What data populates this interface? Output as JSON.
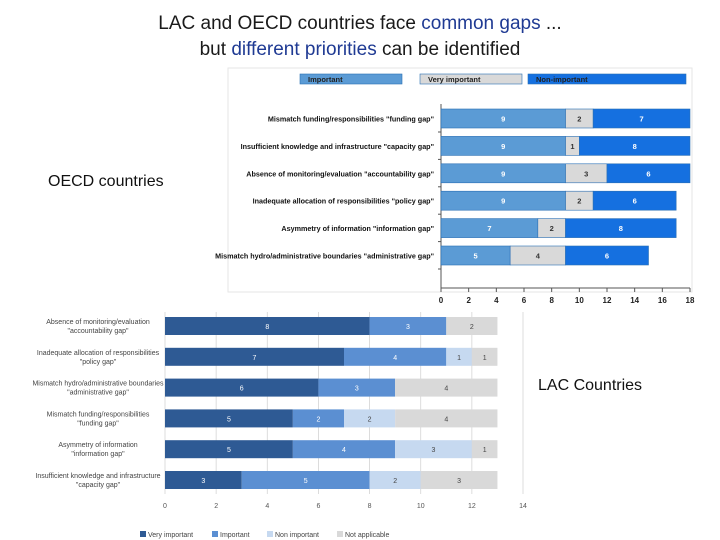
{
  "title": {
    "part1": "LAC and OECD countries face ",
    "highlight1": "common gaps",
    "part2": " ...",
    "part3": "but ",
    "highlight2": "different priorities",
    "part4": " can be identified"
  },
  "labels": {
    "oecd": "OECD countries",
    "lac": "LAC Countries"
  },
  "colors": {
    "title_highlight": "#1f3a93",
    "oecd_important": "#5b9bd5",
    "oecd_very_important": "#d9d9d9",
    "oecd_non_important": "#1570e0",
    "lac_very_important": "#2e5a94",
    "lac_important": "#5b8fd2",
    "lac_non_important": "#c6d9f0",
    "lac_not_applicable": "#d9d9d9"
  },
  "chart_data": [
    {
      "type": "bar",
      "orientation": "horizontal",
      "stacked": true,
      "title": "",
      "categories": [
        "Mismatch funding/responsibilities \"funding gap\"",
        "Insufficient knowledge and infrastructure \"capacity gap\"",
        "Absence of monitoring/evaluation \"accountability gap\"",
        "Inadequate allocation of responsibilities \"policy gap\"",
        "Asymmetry of information \"information gap\"",
        "Mismatch hydro/administrative boundaries \"administrative gap\""
      ],
      "series": [
        {
          "name": "Important",
          "color_key": "oecd_important",
          "values": [
            9,
            9,
            9,
            9,
            7,
            5
          ]
        },
        {
          "name": "Very important",
          "color_key": "oecd_very_important",
          "values": [
            2,
            1,
            3,
            2,
            2,
            4
          ]
        },
        {
          "name": "Non-important",
          "color_key": "oecd_non_important",
          "values": [
            7,
            8,
            6,
            6,
            8,
            6
          ]
        }
      ],
      "xlim": [
        0,
        18
      ],
      "xticks": [
        0,
        2,
        4,
        6,
        8,
        10,
        12,
        14,
        16,
        18
      ],
      "grid": false,
      "legend": "top"
    },
    {
      "type": "bar",
      "orientation": "horizontal",
      "stacked": true,
      "title": "",
      "categories": [
        [
          "Absence of monitoring/evaluation",
          "\"accountability gap\""
        ],
        [
          "Inadequate allocation of responsibilities",
          "\"policy gap\""
        ],
        [
          "Mismatch hydro/administrative boundaries",
          "\"administrative gap\""
        ],
        [
          "Mismatch funding/responsibilities",
          "\"funding gap\""
        ],
        [
          "Asymmetry of information",
          "\"information gap\""
        ],
        [
          "Insufficient knowledge and infrastructure",
          "\"capacity gap\""
        ]
      ],
      "series": [
        {
          "name": "Very important",
          "color_key": "lac_very_important",
          "values": [
            8,
            7,
            6,
            5,
            5,
            3
          ]
        },
        {
          "name": "Important",
          "color_key": "lac_important",
          "values": [
            3,
            4,
            3,
            2,
            4,
            5
          ]
        },
        {
          "name": "Non important",
          "color_key": "lac_non_important",
          "values": [
            0,
            1,
            0,
            2,
            3,
            2
          ]
        },
        {
          "name": "Not applicable",
          "color_key": "lac_not_applicable",
          "values": [
            2,
            1,
            4,
            4,
            1,
            3
          ]
        }
      ],
      "value_labels": [
        [
          "8",
          "3",
          "",
          "2"
        ],
        [
          "7",
          "4",
          "1",
          "1"
        ],
        [
          "6",
          "3",
          "",
          "4"
        ],
        [
          "5",
          "2",
          "2",
          "4"
        ],
        [
          "5",
          "4",
          "3",
          "1"
        ],
        [
          "3",
          "5",
          "2",
          "3"
        ]
      ],
      "xlim": [
        0,
        14
      ],
      "xticks": [
        0,
        2,
        4,
        6,
        8,
        10,
        12,
        14
      ],
      "grid": true,
      "legend": "bottom"
    }
  ]
}
